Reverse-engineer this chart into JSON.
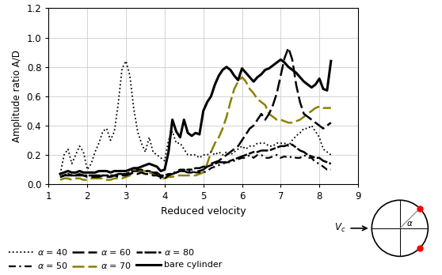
{
  "xlabel": "Reduced velocity",
  "ylabel": "Amplitude ratio A/D",
  "xlim": [
    1,
    9
  ],
  "ylim": [
    0.0,
    1.2
  ],
  "xticks": [
    1,
    2,
    3,
    4,
    5,
    6,
    7,
    8,
    9
  ],
  "yticks": [
    0.0,
    0.2,
    0.4,
    0.6,
    0.8,
    1.0,
    1.2
  ],
  "alpha40_x": [
    1.3,
    1.4,
    1.5,
    1.6,
    1.7,
    1.8,
    1.9,
    2.0,
    2.1,
    2.2,
    2.3,
    2.4,
    2.5,
    2.6,
    2.7,
    2.8,
    2.9,
    3.0,
    3.1,
    3.2,
    3.3,
    3.4,
    3.5,
    3.6,
    3.7,
    3.8,
    3.9,
    4.0,
    4.1,
    4.2,
    4.3,
    4.4,
    4.5,
    4.6,
    4.7,
    4.8,
    4.9,
    5.0,
    5.1,
    5.2,
    5.3,
    5.4,
    5.5,
    5.6,
    5.7,
    5.8,
    5.9,
    6.0,
    6.1,
    6.2,
    6.3,
    6.4,
    6.5,
    6.6,
    6.7,
    6.8,
    6.9,
    7.0,
    7.1,
    7.2,
    7.3,
    7.4,
    7.5,
    7.6,
    7.7,
    7.8,
    7.9,
    8.0,
    8.1,
    8.2,
    8.3
  ],
  "alpha40_y": [
    0.07,
    0.2,
    0.24,
    0.14,
    0.2,
    0.26,
    0.22,
    0.1,
    0.14,
    0.22,
    0.28,
    0.36,
    0.38,
    0.3,
    0.36,
    0.55,
    0.79,
    0.84,
    0.74,
    0.52,
    0.36,
    0.28,
    0.22,
    0.32,
    0.22,
    0.2,
    0.18,
    0.16,
    0.3,
    0.36,
    0.28,
    0.28,
    0.24,
    0.2,
    0.2,
    0.2,
    0.18,
    0.2,
    0.2,
    0.22,
    0.2,
    0.22,
    0.2,
    0.22,
    0.2,
    0.22,
    0.24,
    0.26,
    0.24,
    0.26,
    0.26,
    0.28,
    0.28,
    0.28,
    0.26,
    0.26,
    0.28,
    0.28,
    0.28,
    0.26,
    0.3,
    0.33,
    0.35,
    0.38,
    0.38,
    0.4,
    0.36,
    0.32,
    0.24,
    0.22,
    0.2
  ],
  "alpha50_x": [
    1.3,
    1.4,
    1.5,
    1.6,
    1.7,
    1.8,
    1.9,
    2.0,
    2.1,
    2.2,
    2.3,
    2.4,
    2.5,
    2.6,
    2.7,
    2.8,
    2.9,
    3.0,
    3.1,
    3.2,
    3.3,
    3.4,
    3.5,
    3.6,
    3.7,
    3.8,
    3.9,
    4.0,
    4.1,
    4.2,
    4.3,
    4.4,
    4.5,
    4.6,
    4.7,
    4.8,
    4.9,
    5.0,
    5.1,
    5.2,
    5.3,
    5.4,
    5.5,
    5.6,
    5.7,
    5.8,
    5.9,
    6.0,
    6.1,
    6.2,
    6.3,
    6.4,
    6.5,
    6.6,
    6.7,
    6.8,
    6.9,
    7.0,
    7.1,
    7.2,
    7.3,
    7.4,
    7.5,
    7.6,
    7.7,
    7.8,
    7.9,
    8.0,
    8.1,
    8.2,
    8.3
  ],
  "alpha50_y": [
    0.05,
    0.06,
    0.07,
    0.06,
    0.06,
    0.07,
    0.06,
    0.06,
    0.06,
    0.06,
    0.06,
    0.06,
    0.06,
    0.05,
    0.06,
    0.06,
    0.07,
    0.07,
    0.08,
    0.1,
    0.1,
    0.1,
    0.09,
    0.09,
    0.08,
    0.07,
    0.04,
    0.04,
    0.06,
    0.07,
    0.09,
    0.1,
    0.1,
    0.09,
    0.09,
    0.08,
    0.08,
    0.08,
    0.09,
    0.11,
    0.12,
    0.13,
    0.14,
    0.15,
    0.15,
    0.16,
    0.17,
    0.18,
    0.18,
    0.2,
    0.18,
    0.2,
    0.2,
    0.18,
    0.18,
    0.19,
    0.2,
    0.18,
    0.19,
    0.18,
    0.19,
    0.18,
    0.18,
    0.2,
    0.18,
    0.18,
    0.15,
    0.14,
    0.12,
    0.1,
    0.1
  ],
  "alpha60_x": [
    1.3,
    1.4,
    1.5,
    1.6,
    1.7,
    1.8,
    1.9,
    2.0,
    2.1,
    2.2,
    2.3,
    2.4,
    2.5,
    2.6,
    2.7,
    2.8,
    2.9,
    3.0,
    3.1,
    3.2,
    3.3,
    3.4,
    3.5,
    3.6,
    3.7,
    3.8,
    3.9,
    4.0,
    4.1,
    4.2,
    4.3,
    4.4,
    4.5,
    4.6,
    4.7,
    4.8,
    4.9,
    5.0,
    5.1,
    5.2,
    5.3,
    5.4,
    5.5,
    5.6,
    5.7,
    5.8,
    5.9,
    6.0,
    6.1,
    6.2,
    6.3,
    6.4,
    6.5,
    6.6,
    6.7,
    6.8,
    6.9,
    7.0,
    7.1,
    7.2,
    7.3,
    7.4,
    7.5,
    7.6,
    7.7,
    7.8,
    7.9,
    8.0,
    8.1,
    8.2,
    8.3
  ],
  "alpha60_y": [
    0.05,
    0.06,
    0.06,
    0.06,
    0.06,
    0.06,
    0.06,
    0.05,
    0.05,
    0.05,
    0.05,
    0.06,
    0.05,
    0.05,
    0.06,
    0.05,
    0.06,
    0.06,
    0.07,
    0.08,
    0.07,
    0.08,
    0.07,
    0.07,
    0.06,
    0.06,
    0.05,
    0.05,
    0.06,
    0.07,
    0.08,
    0.09,
    0.09,
    0.08,
    0.08,
    0.09,
    0.09,
    0.1,
    0.12,
    0.14,
    0.15,
    0.16,
    0.18,
    0.2,
    0.22,
    0.24,
    0.26,
    0.3,
    0.34,
    0.38,
    0.4,
    0.44,
    0.48,
    0.44,
    0.48,
    0.54,
    0.62,
    0.74,
    0.86,
    0.93,
    0.85,
    0.68,
    0.56,
    0.48,
    0.46,
    0.44,
    0.42,
    0.4,
    0.38,
    0.4,
    0.42
  ],
  "alpha70_x": [
    1.3,
    1.4,
    1.5,
    1.6,
    1.7,
    1.8,
    1.9,
    2.0,
    2.1,
    2.2,
    2.3,
    2.4,
    2.5,
    2.6,
    2.7,
    2.8,
    2.9,
    3.0,
    3.1,
    3.2,
    3.3,
    3.4,
    3.5,
    3.6,
    3.7,
    3.8,
    3.9,
    4.0,
    4.1,
    4.2,
    4.3,
    4.4,
    4.5,
    4.6,
    4.7,
    4.8,
    4.9,
    5.0,
    5.1,
    5.2,
    5.3,
    5.4,
    5.5,
    5.6,
    5.7,
    5.8,
    5.9,
    6.0,
    6.1,
    6.2,
    6.3,
    6.4,
    6.5,
    6.6,
    6.7,
    6.8,
    6.9,
    7.0,
    7.1,
    7.2,
    7.3,
    7.4,
    7.5,
    7.6,
    7.7,
    7.8,
    7.9,
    8.0,
    8.1,
    8.2,
    8.3
  ],
  "alpha70_y": [
    0.03,
    0.04,
    0.04,
    0.03,
    0.04,
    0.04,
    0.03,
    0.03,
    0.04,
    0.04,
    0.04,
    0.04,
    0.03,
    0.03,
    0.04,
    0.04,
    0.04,
    0.05,
    0.06,
    0.1,
    0.1,
    0.09,
    0.09,
    0.08,
    0.07,
    0.07,
    0.04,
    0.04,
    0.05,
    0.05,
    0.06,
    0.06,
    0.06,
    0.06,
    0.06,
    0.06,
    0.07,
    0.08,
    0.14,
    0.22,
    0.28,
    0.32,
    0.38,
    0.46,
    0.56,
    0.65,
    0.7,
    0.73,
    0.7,
    0.65,
    0.62,
    0.58,
    0.56,
    0.54,
    0.48,
    0.46,
    0.44,
    0.44,
    0.43,
    0.42,
    0.42,
    0.43,
    0.44,
    0.46,
    0.48,
    0.5,
    0.52,
    0.53,
    0.52,
    0.52,
    0.52
  ],
  "alpha80_x": [
    1.3,
    1.4,
    1.5,
    1.6,
    1.7,
    1.8,
    1.9,
    2.0,
    2.1,
    2.2,
    2.3,
    2.4,
    2.5,
    2.6,
    2.7,
    2.8,
    2.9,
    3.0,
    3.1,
    3.2,
    3.3,
    3.4,
    3.5,
    3.6,
    3.7,
    3.8,
    3.9,
    4.0,
    4.1,
    4.2,
    4.3,
    4.4,
    4.5,
    4.6,
    4.7,
    4.8,
    4.9,
    5.0,
    5.1,
    5.2,
    5.3,
    5.4,
    5.5,
    5.6,
    5.7,
    5.8,
    5.9,
    6.0,
    6.1,
    6.2,
    6.3,
    6.4,
    6.5,
    6.6,
    6.7,
    6.8,
    6.9,
    7.0,
    7.1,
    7.2,
    7.3,
    7.4,
    7.5,
    7.6,
    7.7,
    7.8,
    7.9,
    8.0,
    8.1,
    8.2,
    8.3
  ],
  "alpha80_y": [
    0.05,
    0.06,
    0.07,
    0.06,
    0.06,
    0.07,
    0.06,
    0.06,
    0.06,
    0.06,
    0.06,
    0.06,
    0.06,
    0.06,
    0.06,
    0.07,
    0.07,
    0.07,
    0.08,
    0.09,
    0.09,
    0.09,
    0.09,
    0.09,
    0.08,
    0.08,
    0.06,
    0.06,
    0.07,
    0.07,
    0.08,
    0.09,
    0.09,
    0.1,
    0.1,
    0.11,
    0.11,
    0.12,
    0.12,
    0.13,
    0.14,
    0.15,
    0.15,
    0.15,
    0.16,
    0.17,
    0.18,
    0.19,
    0.2,
    0.21,
    0.22,
    0.22,
    0.23,
    0.23,
    0.23,
    0.24,
    0.25,
    0.26,
    0.26,
    0.27,
    0.27,
    0.25,
    0.23,
    0.22,
    0.2,
    0.19,
    0.18,
    0.18,
    0.16,
    0.15,
    0.14
  ],
  "bare_x": [
    1.3,
    1.4,
    1.5,
    1.6,
    1.7,
    1.8,
    1.9,
    2.0,
    2.1,
    2.2,
    2.3,
    2.4,
    2.5,
    2.6,
    2.7,
    2.8,
    2.9,
    3.0,
    3.1,
    3.2,
    3.3,
    3.4,
    3.5,
    3.6,
    3.7,
    3.8,
    3.9,
    4.0,
    4.1,
    4.2,
    4.3,
    4.4,
    4.5,
    4.6,
    4.7,
    4.8,
    4.9,
    5.0,
    5.1,
    5.2,
    5.3,
    5.4,
    5.5,
    5.6,
    5.7,
    5.8,
    5.9,
    6.0,
    6.1,
    6.2,
    6.3,
    6.4,
    6.5,
    6.6,
    6.7,
    6.8,
    6.9,
    7.0,
    7.1,
    7.2,
    7.3,
    7.4,
    7.5,
    7.6,
    7.7,
    7.8,
    7.9,
    8.0,
    8.1,
    8.2,
    8.3
  ],
  "bare_y": [
    0.07,
    0.08,
    0.09,
    0.08,
    0.08,
    0.09,
    0.08,
    0.08,
    0.08,
    0.08,
    0.09,
    0.09,
    0.09,
    0.08,
    0.09,
    0.09,
    0.09,
    0.09,
    0.1,
    0.11,
    0.11,
    0.12,
    0.13,
    0.14,
    0.13,
    0.12,
    0.09,
    0.1,
    0.22,
    0.44,
    0.36,
    0.32,
    0.44,
    0.35,
    0.33,
    0.35,
    0.34,
    0.5,
    0.56,
    0.6,
    0.68,
    0.74,
    0.78,
    0.8,
    0.78,
    0.74,
    0.71,
    0.79,
    0.76,
    0.73,
    0.7,
    0.73,
    0.75,
    0.78,
    0.79,
    0.81,
    0.83,
    0.85,
    0.83,
    0.8,
    0.78,
    0.76,
    0.73,
    0.7,
    0.68,
    0.66,
    0.68,
    0.72,
    0.65,
    0.64,
    0.84
  ],
  "color_alpha40": "#000000",
  "color_alpha50": "#000000",
  "color_alpha60": "#000000",
  "color_alpha70": "#8B8000",
  "color_alpha80": "#000000",
  "color_bare": "#000000"
}
